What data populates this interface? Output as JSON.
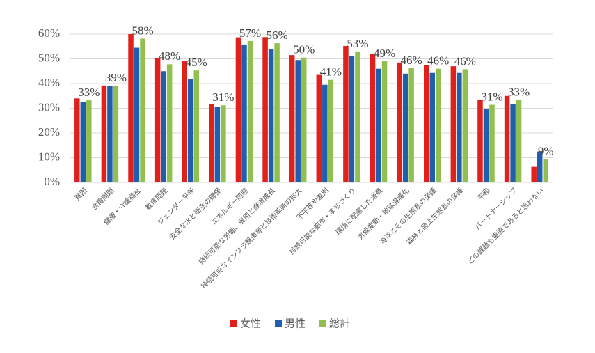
{
  "chart_data": {
    "type": "bar",
    "categories": [
      "貧困",
      "食糧問題",
      "健康・介護福祉",
      "教育問題",
      "ジェンダー平等",
      "安全な水と衛生の確保",
      "エネルギー問題",
      "持続可能な労働、雇用と経済成長",
      "持続可能なインフラ整備等と技術革新の拡大",
      "不平等や差別",
      "持続可能な都市・まちづくり",
      "環境に配慮した消費",
      "気候変動・地球温暖化",
      "海洋とその生態系の保護",
      "森林と陸上生態系の保護",
      "平和",
      "パートナーシップ",
      "どの課題も重要であると思わない"
    ],
    "series": [
      {
        "name": "女性",
        "color": "#e0201b",
        "values": [
          34.0,
          39.2,
          60.0,
          50.3,
          49.0,
          31.8,
          58.7,
          58.8,
          51.5,
          43.5,
          55.2,
          52.0,
          48.5,
          47.5,
          47.0,
          33.4,
          35.0,
          6.3
        ]
      },
      {
        "name": "男性",
        "color": "#1f5fad",
        "values": [
          32.4,
          39.0,
          54.5,
          45.0,
          41.7,
          30.5,
          55.8,
          53.8,
          49.5,
          39.5,
          51.0,
          46.0,
          44.0,
          44.3,
          44.3,
          29.8,
          31.8,
          12.5
        ]
      },
      {
        "name": "総計",
        "color": "#92c050",
        "values": [
          33.2,
          39.1,
          58.2,
          47.8,
          45.3,
          31.2,
          57.2,
          56.3,
          50.5,
          41.5,
          53.0,
          49.0,
          46.2,
          46.0,
          45.8,
          31.4,
          33.4,
          9.4
        ],
        "value_labels": [
          "33%",
          "39%",
          "58%",
          "48%",
          "45%",
          "31%",
          "57%",
          "56%",
          "50%",
          "41%",
          "53%",
          "49%",
          "46%",
          "46%",
          "46%",
          "31%",
          "33%",
          "9%"
        ]
      }
    ],
    "ylim": [
      0,
      60
    ],
    "yticks": [
      {
        "value": 0,
        "label": "0%"
      },
      {
        "value": 10,
        "label": "10%"
      },
      {
        "value": 20,
        "label": "20%"
      },
      {
        "value": 30,
        "label": "30%"
      },
      {
        "value": 40,
        "label": "40%"
      },
      {
        "value": 50,
        "label": "50%"
      },
      {
        "value": 60,
        "label": "60%"
      }
    ],
    "grid": true,
    "legend": "bottom"
  }
}
